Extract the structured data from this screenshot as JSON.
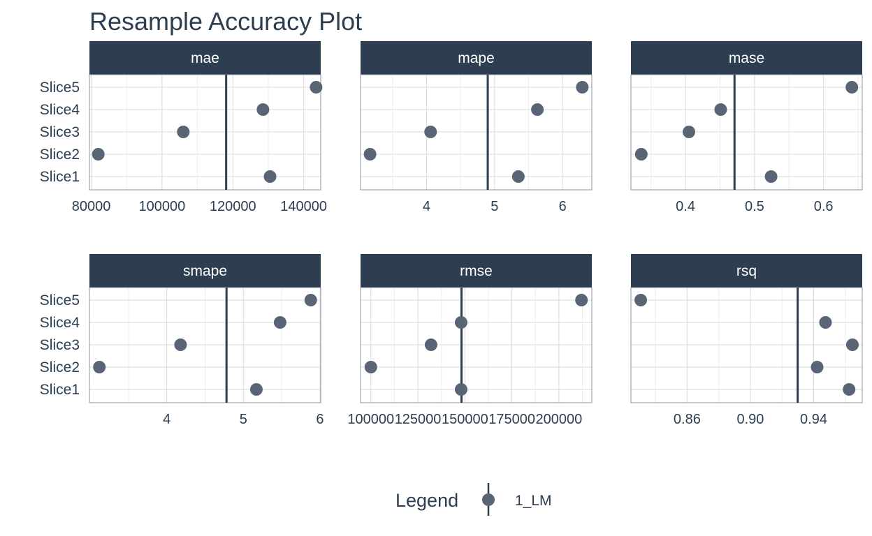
{
  "title": "Resample Accuracy Plot",
  "colors": {
    "strip_bg": "#2c3e50",
    "strip_text": "#ffffff",
    "point": "#596575",
    "vline": "#2c3e50",
    "grid": "#d9d9d9",
    "axis_text": "#2c3e50",
    "panel_border": "#8a94a3"
  },
  "legend": {
    "title": "Legend",
    "items": [
      {
        "label": "1_LM",
        "color": "#596575"
      }
    ]
  },
  "chart_data": {
    "type": "scatter",
    "layout": "facet 2 rows x 3 columns",
    "grid": true,
    "legend_position": "bottom",
    "categories": [
      "Slice1",
      "Slice2",
      "Slice3",
      "Slice4",
      "Slice5"
    ],
    "panels": [
      {
        "metric": "mae",
        "series": [
          {
            "name": "1_LM",
            "values": [
              130500,
              82000,
              106000,
              128500,
              143500
            ]
          }
        ],
        "mean": 118100,
        "xlim": [
          79500,
          144800
        ],
        "xticks": [
          80000,
          100000,
          120000,
          140000
        ],
        "xtick_labels": [
          "80000",
          "100000",
          "120000",
          "140000"
        ]
      },
      {
        "metric": "mape",
        "series": [
          {
            "name": "1_LM",
            "values": [
              5.35,
              3.17,
              4.06,
              5.63,
              6.29
            ]
          }
        ],
        "mean": 4.9,
        "xlim": [
          3.03,
          6.43
        ],
        "xticks": [
          4,
          5,
          6
        ],
        "xtick_labels": [
          "4",
          "5",
          "6"
        ]
      },
      {
        "metric": "mase",
        "series": [
          {
            "name": "1_LM",
            "values": [
              0.524,
              0.336,
              0.405,
              0.451,
              0.641
            ]
          }
        ],
        "mean": 0.471,
        "xlim": [
          0.321,
          0.656
        ],
        "xticks": [
          0.4,
          0.5,
          0.6
        ],
        "xtick_labels": [
          "0.4",
          "0.5",
          "0.6"
        ]
      },
      {
        "metric": "smape",
        "series": [
          {
            "name": "1_LM",
            "values": [
              5.17,
              3.12,
              4.18,
              5.48,
              5.88
            ]
          }
        ],
        "mean": 4.78,
        "xlim": [
          2.99,
          6.01
        ],
        "xticks": [
          4,
          5,
          6
        ],
        "xtick_labels": [
          "4",
          "5",
          "6"
        ]
      },
      {
        "metric": "rmse",
        "series": [
          {
            "name": "1_LM",
            "values": [
              148000,
              100000,
              132000,
              148000,
              212000
            ]
          }
        ],
        "mean": 148200,
        "xlim": [
          94500,
          217500
        ],
        "xticks": [
          100000,
          125000,
          150000,
          175000,
          200000
        ],
        "xtick_labels": [
          "100000",
          "125000",
          "150000",
          "175000",
          "200000"
        ]
      },
      {
        "metric": "rsq",
        "series": [
          {
            "name": "1_LM",
            "values": [
              0.9624,
              0.9422,
              0.9645,
              0.9475,
              0.8307
            ]
          }
        ],
        "mean": 0.9299,
        "xlim": [
          0.8245,
          0.9707
        ],
        "xticks": [
          0.86,
          0.9,
          0.94
        ],
        "xtick_labels": [
          "0.86",
          "0.90",
          "0.94"
        ]
      }
    ]
  }
}
